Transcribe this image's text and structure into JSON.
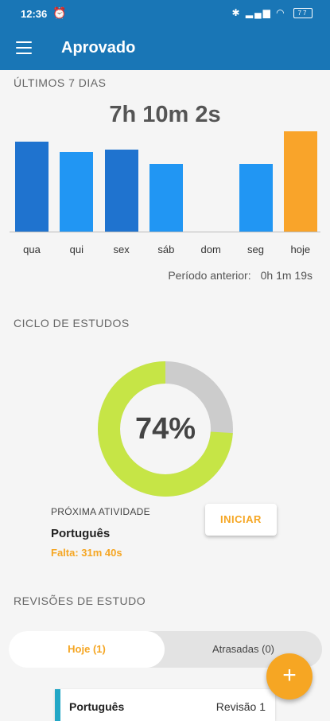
{
  "status_bar": {
    "time": "12:36",
    "battery": "77"
  },
  "app_bar": {
    "title": "Aprovado"
  },
  "last7": {
    "title": "ÚLTIMOS 7 DIAS",
    "total": "7h 10m 2s",
    "previous_label": "Período anterior:",
    "previous_value": "0h 1m 19s"
  },
  "chart_data": {
    "type": "bar",
    "categories": [
      "qua",
      "qui",
      "sex",
      "sáb",
      "dom",
      "seg",
      "hoje"
    ],
    "values": [
      113,
      100,
      103,
      85,
      0,
      85,
      126
    ],
    "colors": [
      "#1f73cf",
      "#2196f3",
      "#1f73cf",
      "#2196f3",
      "#2196f3",
      "#2196f3",
      "#f9a42a"
    ]
  },
  "cycle": {
    "title": "CICLO DE ESTUDOS",
    "percent": 74,
    "percent_label": "74%",
    "progress_color": "#c6e546",
    "remaining_color": "#cccccc",
    "next_label": "PRÓXIMA ATIVIDADE",
    "next_subject": "Português",
    "next_remaining": "Falta: 31m 40s",
    "start_button": "INICIAR"
  },
  "reviews": {
    "title": "REVISÕES DE ESTUDO",
    "tab_today": "Hoje (1)",
    "tab_late": "Atrasadas (0)",
    "items": [
      {
        "subject": "Português",
        "revision": "Revisão 1"
      }
    ]
  },
  "fab_label": "+"
}
